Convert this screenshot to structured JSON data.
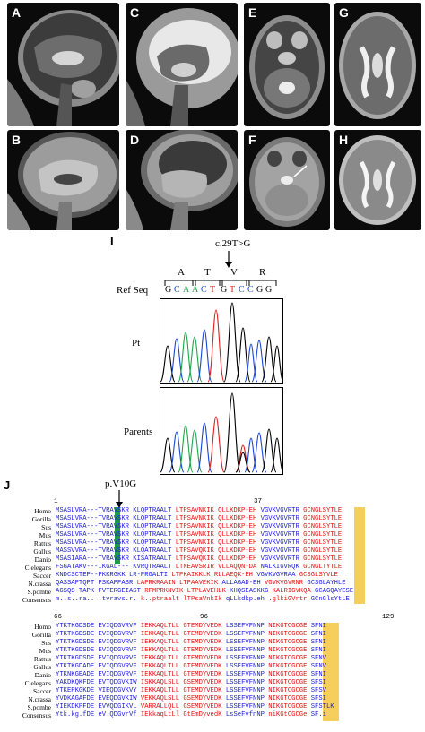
{
  "panels": {
    "A": "A",
    "B": "B",
    "C": "C",
    "D": "D",
    "E": "E",
    "F": "F",
    "G": "G",
    "H": "H",
    "I": "I",
    "J": "J"
  },
  "panel_I": {
    "mutation": "c.29T>G",
    "ref_seq_label": "Ref Seq",
    "codons": [
      "A",
      "T",
      "V",
      "R"
    ],
    "bases": [
      "G",
      "C",
      "A",
      "A",
      "C",
      "T",
      "G",
      "T",
      "C",
      "C",
      "G",
      "G"
    ],
    "base_colors": {
      "A": "#1aa84a",
      "C": "#1a46d6",
      "G": "#000000",
      "T": "#e02020"
    },
    "trace_labels": [
      "Pt",
      "Parents"
    ]
  },
  "panel_J": {
    "annotation": "p.V10G",
    "species": [
      "Homo",
      "Gorilla",
      "Sus",
      "Mus",
      "Rattus",
      "Gallus",
      "Danio",
      "C.elegans",
      "Saccer",
      "N.crassa",
      "S.pombe",
      "Consensus"
    ],
    "block1_numbers": [
      "1",
      "37"
    ],
    "block2_numbers": [
      "66",
      "96",
      "129"
    ],
    "block1": [
      "MSASLVRA---TVRAVSKR KLQPTRAALT LTPSAVNKIK QLLKDKP-EH VGVKVGVRTR GCNGLSYTLE",
      "MSASLVRA---TVRAVSKR KLQPTRAALT LTPSAVNKIK QLLKDKP-EH VGVKVGVRTR GCNGLSYTLE",
      "MSASLVRA---TVRAVSKR KLQPTRAALT LTPSAVNKIK QLLKDKP-EH VGVKVGVRTR GCNGLSYTLE",
      "MSASLVRA---TVRAVSKR KLQPTRAALT LTPSAVNKIK QLLKDKP-EH VGVKVGVRTR GCNGLSYTLE",
      "MSASLVRA---TVRAVSKR KLQPTRAALT LTPSAVNKIK QLLKDKP-EH VGVKVGVRTR GCNGLSYTLE",
      "MASSVVRA---TVRAVSKR KLQATRAALT LTPSAVQKIK QLLKDKP-EH VGVKVGVRTR GCNGLSYTLE",
      "MSASIARA---TVRAVSKR KISATRAALT LTPSAVQKIK QLLKDKP-EH VGVKVGVRTR GCNGLSYTLE",
      "FSGATAKV---IKGAL--- KVRQTRAALT LTNEAVSRIR VLLAQQN-DA NALKIGVRQK GCNGLTYTLE",
      "KNDCSCTEP--PKKRGKK LR-PRGALTI LTPKAIKKLK RLLAEQK-EH VGVKVGVRAA GCSGLSYVLE",
      "QASSAPTQPT PSKAPPASR LAPRKRAAIN LTPAAVEKIK ALLAGAD-EH VGVKVGVRNR GCSGLAYHLE",
      "AGSQS-TAPK FVTERGEIAST RFMPRKNVIK LTPLAVEHLK KHQSEASKKG KALRIGVKQA GCAGQAYESE",
      "m..s..ra.. .tvravs.r. k..ptraalt lTPsaVnkIk qLLkdkp.eh .glkiGVrtr GCnGlsYtLE"
    ],
    "block2": [
      "YTKTKGDSDE EVIQDGVRVF IEKKAQLTLL GTEMDYVEDK LSSEFVFNNP NIKGTCGCGE SFNI",
      "YTKTKGDSDE EVIQDGVRVF IEKKAQLTLL GTEMDYVEDK LSSEFVFNNP NIKGTCGCGE SFNI",
      "YTKTKGDSDE EVIQDGVRVF IEKKAQLTLL GTEMDYVEDK LSSEFVFNNP NIKGTCGCGE SFNI",
      "YTKTKGDSDE EVIQDGVRVF IEKKAQLTLL GTEMDYVEDK LSSEFVFNNP NIKGTCGCGE SFNI",
      "YTKTKGDSDE EVIQDGVRVF IEKKAQLTLL GTEMDYVEDK LSSEFVFNNP NIKGTCGCGE SFNV",
      "YTKTKGDADE EVIQDGVRVF IEKKAQLTLL GTEMDYVEDK LSSEFVFNNP NIKGTCGCGE SFNV",
      "YTKNKGEADE EVIQDGVRVF IEKKAQLTLL GTEMDYVEDK LSSEFVFNNP NIKGTCGCGE SFNI",
      "YAKDKQKFDE EVTQDGVKIW ISKKAQLSLL GSEMDYVEDK LSSEFVFNNP NIKGTCGCGE SFSI",
      "YTKEPKGKDE VIEQDGVKVY IEKKAQLTLL GTEMDYVEDK LSSEFVFNNP NIKGTCGCGE SFSV",
      "YVDKAGAFDE EVEQDGVKIW VEKKAQLSLL GSEMDYVEDK LSSEFVFNNP NIKGTCGCGE SFSI",
      "YIEKDKPFDE EVVQDGIKVL VARRALLQLL GSEMDYVEDK LSSEFVFNNP NIKGTCGCGE SFSTLK",
      "Ytk.kg.fDE eV.QDGvrVf IEkkaqLtLl GtEmDyvedK LsSeFvfnNP niKGtCGCGe SF.i"
    ]
  }
}
